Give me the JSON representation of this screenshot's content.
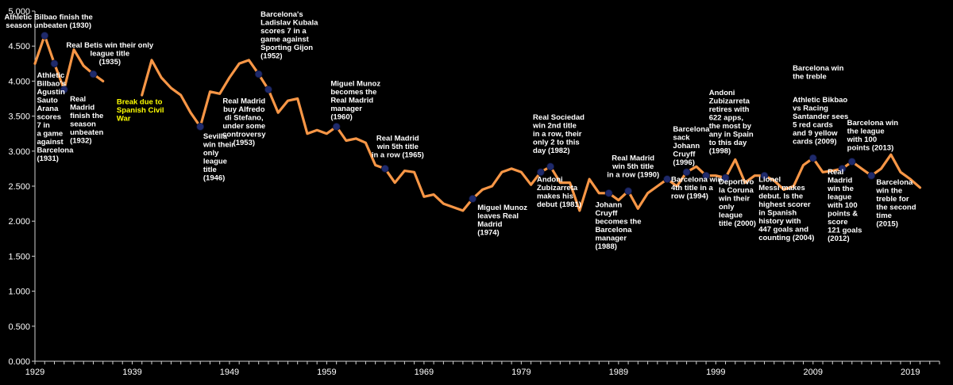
{
  "chart_data": {
    "type": "line",
    "title": "",
    "xlabel": "",
    "ylabel": "",
    "ylim": [
      0,
      5
    ],
    "xlim": [
      1929,
      2022
    ],
    "y_ticks": [
      "0.000",
      "0.500",
      "1.000",
      "1.500",
      "2.000",
      "2.500",
      "3.000",
      "3.500",
      "4.000",
      "4.500",
      "5.000"
    ],
    "x_ticks": [
      "1929",
      "1939",
      "1949",
      "1959",
      "1969",
      "1979",
      "1989",
      "1999",
      "2009",
      "2019"
    ],
    "grid": false,
    "line_color": "#f79646",
    "marker_color": "#1f2a6b",
    "series": [
      {
        "segments": [
          [
            [
              1929,
              4.25
            ],
            [
              1930,
              4.65
            ],
            [
              1931,
              4.25
            ],
            [
              1932,
              3.88
            ],
            [
              1933,
              4.45
            ],
            [
              1934,
              4.22
            ],
            [
              1935,
              4.1
            ],
            [
              1936,
              4.0
            ]
          ],
          [
            [
              1940,
              3.8
            ],
            [
              1941,
              4.3
            ],
            [
              1942,
              4.05
            ],
            [
              1943,
              3.9
            ],
            [
              1944,
              3.8
            ],
            [
              1945,
              3.55
            ],
            [
              1946,
              3.35
            ],
            [
              1947,
              3.85
            ],
            [
              1948,
              3.82
            ],
            [
              1949,
              4.05
            ],
            [
              1950,
              4.25
            ],
            [
              1951,
              4.3
            ],
            [
              1952,
              4.1
            ],
            [
              1953,
              3.88
            ],
            [
              1954,
              3.55
            ],
            [
              1955,
              3.72
            ],
            [
              1956,
              3.75
            ],
            [
              1957,
              3.25
            ],
            [
              1958,
              3.3
            ],
            [
              1959,
              3.25
            ],
            [
              1960,
              3.35
            ],
            [
              1961,
              3.15
            ],
            [
              1962,
              3.18
            ],
            [
              1963,
              3.12
            ],
            [
              1964,
              2.8
            ],
            [
              1965,
              2.75
            ],
            [
              1966,
              2.55
            ],
            [
              1967,
              2.72
            ],
            [
              1968,
              2.7
            ],
            [
              1969,
              2.35
            ],
            [
              1970,
              2.38
            ],
            [
              1971,
              2.25
            ],
            [
              1972,
              2.2
            ],
            [
              1973,
              2.15
            ],
            [
              1974,
              2.32
            ],
            [
              1975,
              2.45
            ],
            [
              1976,
              2.5
            ],
            [
              1977,
              2.7
            ],
            [
              1978,
              2.75
            ],
            [
              1979,
              2.7
            ],
            [
              1980,
              2.52
            ],
            [
              1981,
              2.7
            ],
            [
              1982,
              2.78
            ],
            [
              1983,
              2.55
            ],
            [
              1984,
              2.55
            ],
            [
              1985,
              2.15
            ],
            [
              1986,
              2.6
            ],
            [
              1987,
              2.4
            ],
            [
              1988,
              2.4
            ],
            [
              1989,
              2.3
            ],
            [
              1990,
              2.43
            ],
            [
              1991,
              2.18
            ],
            [
              1992,
              2.4
            ],
            [
              1993,
              2.5
            ],
            [
              1994,
              2.6
            ],
            [
              1995,
              2.5
            ],
            [
              1996,
              2.7
            ],
            [
              1997,
              2.78
            ],
            [
              1998,
              2.65
            ],
            [
              1999,
              2.65
            ],
            [
              2000,
              2.62
            ],
            [
              2001,
              2.88
            ],
            [
              2002,
              2.55
            ],
            [
              2003,
              2.65
            ],
            [
              2004,
              2.65
            ],
            [
              2005,
              2.58
            ],
            [
              2006,
              2.45
            ],
            [
              2007,
              2.5
            ],
            [
              2008,
              2.8
            ],
            [
              2009,
              2.9
            ],
            [
              2010,
              2.7
            ],
            [
              2011,
              2.72
            ],
            [
              2012,
              2.75
            ],
            [
              2013,
              2.85
            ],
            [
              2014,
              2.75
            ],
            [
              2015,
              2.65
            ],
            [
              2016,
              2.75
            ],
            [
              2017,
              2.95
            ],
            [
              2018,
              2.7
            ],
            [
              2019,
              2.6
            ],
            [
              2020,
              2.48
            ]
          ]
        ]
      }
    ],
    "markers": [
      [
        1930,
        4.65
      ],
      [
        1931,
        4.25
      ],
      [
        1932,
        3.88
      ],
      [
        1935,
        4.1
      ],
      [
        1946,
        3.35
      ],
      [
        1952,
        4.1
      ],
      [
        1953,
        3.88
      ],
      [
        1960,
        3.35
      ],
      [
        1965,
        2.75
      ],
      [
        1974,
        2.32
      ],
      [
        1981,
        2.7
      ],
      [
        1982,
        2.78
      ],
      [
        1988,
        2.4
      ],
      [
        1990,
        2.43
      ],
      [
        1994,
        2.6
      ],
      [
        1996,
        2.7
      ],
      [
        1998,
        2.65
      ],
      [
        2000,
        2.62
      ],
      [
        2004,
        2.65
      ],
      [
        2009,
        2.9
      ],
      [
        2012,
        2.75
      ],
      [
        2013,
        2.85
      ],
      [
        2015,
        2.65
      ]
    ],
    "annotations": [
      {
        "lines": [
          "Athletic Bilbao finish the",
          "season unbeaten (1930)"
        ],
        "x": 1930.4,
        "y": 4.88,
        "anchor": "middle",
        "color": "white"
      },
      {
        "lines": [
          "Real Betis win their only",
          "league title",
          "(1935)"
        ],
        "x": 1936.7,
        "y": 4.48,
        "anchor": "middle",
        "color": "white"
      },
      {
        "lines": [
          "Athletic",
          "Bilbao's",
          "Agustin",
          "Sauto",
          "Arana",
          "scores",
          "7 in",
          "a game",
          "against",
          "Barcelona",
          "(1931)"
        ],
        "x": 1929.2,
        "y": 4.05,
        "anchor": "start",
        "color": "white"
      },
      {
        "lines": [
          "Real",
          "Madrid",
          "finish the",
          "season",
          "unbeaten",
          "(1932)"
        ],
        "x": 1932.6,
        "y": 3.71,
        "anchor": "start",
        "color": "white"
      },
      {
        "lines": [
          "Break due to",
          "Spanish Civil",
          "War"
        ],
        "x": 1937.4,
        "y": 3.67,
        "anchor": "start",
        "color": "yellow"
      },
      {
        "lines": [
          "Sevilla",
          "win their",
          "only",
          "league",
          "title",
          "(1946)"
        ],
        "x": 1946.3,
        "y": 3.18,
        "anchor": "start",
        "color": "white"
      },
      {
        "lines": [
          "Barcelona's",
          "Ladislav Kubala",
          "scores 7 in a",
          "game against",
          "Sporting Gijon",
          "(1952)"
        ],
        "x": 1952.2,
        "y": 4.92,
        "anchor": "start",
        "color": "white"
      },
      {
        "lines": [
          "Real Madrid",
          "buy Alfredo",
          "di Stefano,",
          "under some",
          "controversy",
          "(1953)"
        ],
        "x": 1950.5,
        "y": 3.68,
        "anchor": "middle",
        "color": "white"
      },
      {
        "lines": [
          "Miguel Munoz",
          "becomes the",
          "Real Madrid",
          "manager",
          "(1960)"
        ],
        "x": 1959.4,
        "y": 3.93,
        "anchor": "start",
        "color": "white"
      },
      {
        "lines": [
          "Real Madrid",
          "win 5th title",
          "in a row (1965)"
        ],
        "x": 1966.3,
        "y": 3.15,
        "anchor": "middle",
        "color": "white"
      },
      {
        "lines": [
          "Miguel Munoz",
          "leaves Real",
          "Madrid",
          "(1974)"
        ],
        "x": 1974.5,
        "y": 2.16,
        "anchor": "start",
        "color": "white"
      },
      {
        "lines": [
          "Real Sociedad",
          "win 2nd title",
          "in a row, their",
          "only 2 to this",
          "day (1982)"
        ],
        "x": 1980.2,
        "y": 3.45,
        "anchor": "start",
        "color": "white"
      },
      {
        "lines": [
          "Andoni",
          "Zubizarreta",
          "makes his",
          "debut (1981)"
        ],
        "x": 1980.6,
        "y": 2.56,
        "anchor": "start",
        "color": "white"
      },
      {
        "lines": [
          "Johann",
          "Cruyff",
          "becomes the",
          "Barcelona",
          "manager",
          "(1988)"
        ],
        "x": 1986.6,
        "y": 2.2,
        "anchor": "start",
        "color": "white"
      },
      {
        "lines": [
          "Real Madrid",
          "win 5th title",
          "in a row (1990)"
        ],
        "x": 1990.5,
        "y": 2.87,
        "anchor": "middle",
        "color": "white"
      },
      {
        "lines": [
          "Barcelona",
          "sack",
          "Johann",
          "Cruyff",
          "(1996)"
        ],
        "x": 1994.6,
        "y": 3.28,
        "anchor": "start",
        "color": "white"
      },
      {
        "lines": [
          "Barcelona win",
          "4th title in a",
          "row (1994)"
        ],
        "x": 1994.4,
        "y": 2.56,
        "anchor": "start",
        "color": "white"
      },
      {
        "lines": [
          "Andoni",
          "Zubizarreta",
          "retires with",
          "622 apps,",
          "the most by",
          "any in Spain",
          "to this day",
          "(1998)"
        ],
        "x": 1998.3,
        "y": 3.8,
        "anchor": "start",
        "color": "white"
      },
      {
        "lines": [
          "Deportivo",
          "la Coruna",
          "win their",
          "only",
          "league",
          "title (2000)"
        ],
        "x": 1999.3,
        "y": 2.53,
        "anchor": "start",
        "color": "white"
      },
      {
        "lines": [
          "Lionel",
          "Messi makes",
          "debut. Is the",
          "highest scorer",
          "in Spanish",
          "history with",
          "447 goals and",
          "counting (2004)"
        ],
        "x": 2003.4,
        "y": 2.56,
        "anchor": "start",
        "color": "white"
      },
      {
        "lines": [
          "Barcelona win",
          "the treble"
        ],
        "x": 2006.9,
        "y": 4.15,
        "anchor": "start",
        "color": "white"
      },
      {
        "lines": [
          "Athletic Bikbao",
          "vs Racing",
          "Santander sees",
          "5 red cards",
          "and 9 yellow",
          "cards (2009)"
        ],
        "x": 2006.9,
        "y": 3.7,
        "anchor": "start",
        "color": "white"
      },
      {
        "lines": [
          "Real",
          "Madrid",
          "win the",
          "league",
          "with 100",
          "points &",
          "score",
          "121 goals",
          "(2012)"
        ],
        "x": 2010.5,
        "y": 2.67,
        "anchor": "start",
        "color": "white"
      },
      {
        "lines": [
          "Barcelona win",
          "the league",
          "with 100",
          "points (2013)"
        ],
        "x": 2012.5,
        "y": 3.37,
        "anchor": "start",
        "color": "white"
      },
      {
        "lines": [
          "Barcelona",
          "win the",
          "treble for",
          "the second",
          "time",
          "(2015)"
        ],
        "x": 2015.5,
        "y": 2.52,
        "anchor": "start",
        "color": "white"
      }
    ]
  }
}
